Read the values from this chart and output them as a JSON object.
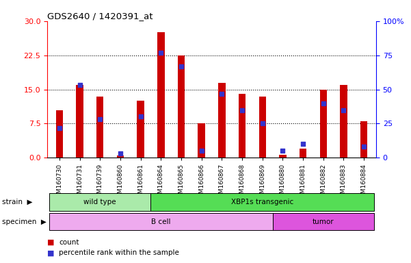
{
  "title": "GDS2640 / 1420391_at",
  "samples": [
    "GSM160730",
    "GSM160731",
    "GSM160739",
    "GSM160860",
    "GSM160861",
    "GSM160864",
    "GSM160865",
    "GSM160866",
    "GSM160867",
    "GSM160868",
    "GSM160869",
    "GSM160880",
    "GSM160881",
    "GSM160882",
    "GSM160883",
    "GSM160884"
  ],
  "count_values": [
    10.5,
    16.0,
    13.5,
    0.5,
    12.5,
    27.5,
    22.5,
    7.5,
    16.5,
    14.0,
    13.5,
    0.7,
    2.0,
    15.0,
    16.0,
    8.0
  ],
  "percentile_values": [
    6.5,
    16.0,
    8.5,
    1.0,
    9.0,
    23.0,
    20.0,
    1.5,
    14.0,
    10.5,
    7.5,
    1.5,
    3.0,
    12.0,
    10.5,
    2.5
  ],
  "ylim_left": [
    0,
    30
  ],
  "ylim_right": [
    0,
    100
  ],
  "yticks_left": [
    0,
    7.5,
    15,
    22.5,
    30
  ],
  "yticks_right": [
    0,
    25,
    50,
    75,
    100
  ],
  "bar_color": "#cc0000",
  "dot_color": "#3333cc",
  "strain_groups": [
    {
      "label": "wild type",
      "start": 0,
      "end": 5,
      "color": "#aaeaaa"
    },
    {
      "label": "XBP1s transgenic",
      "start": 5,
      "end": 16,
      "color": "#55dd55"
    }
  ],
  "specimen_groups": [
    {
      "label": "B cell",
      "start": 0,
      "end": 11,
      "color": "#eeaaee"
    },
    {
      "label": "tumor",
      "start": 11,
      "end": 16,
      "color": "#dd55dd"
    }
  ],
  "legend_count_color": "#cc0000",
  "legend_pct_color": "#3333cc",
  "bg_color": "#ffffff",
  "bar_width": 0.35
}
